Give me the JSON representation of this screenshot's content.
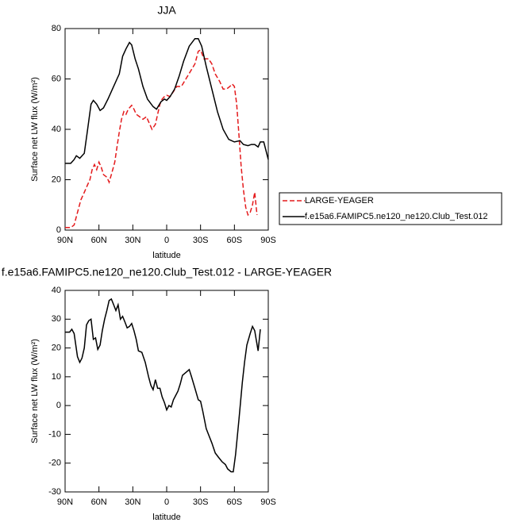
{
  "chart_data": [
    {
      "type": "line",
      "title": "JJA",
      "x_label": "latitude",
      "y_label": "Surface net LW flux (W/m²)",
      "xlim": [
        90,
        -90
      ],
      "ylim": [
        0,
        80
      ],
      "xticks": [
        {
          "value": 90,
          "label": "90N"
        },
        {
          "value": 60,
          "label": "60N"
        },
        {
          "value": 30,
          "label": "30N"
        },
        0,
        {
          "value": -30,
          "label": "30S"
        },
        {
          "value": -60,
          "label": "60S"
        },
        {
          "value": -90,
          "label": "90S"
        }
      ],
      "yticks": [
        0,
        20,
        40,
        60,
        80
      ],
      "legend": "right",
      "series": [
        {
          "name": "LARGE-YEAGER",
          "color": "#e41a1c",
          "line_style": "dashed",
          "x": [
            90,
            85,
            82,
            79,
            76,
            73,
            70,
            68,
            66,
            64,
            62,
            60,
            58,
            56,
            53,
            51,
            49,
            46,
            44,
            42,
            40,
            38,
            36,
            34,
            31,
            29,
            27,
            24,
            21,
            18,
            15,
            13,
            10,
            8,
            6,
            4,
            2,
            0,
            -3,
            -6,
            -9,
            -13,
            -17,
            -21,
            -25,
            -28,
            -30,
            -33,
            -37,
            -40,
            -43,
            -47,
            -50,
            -53,
            -56,
            -58,
            -60,
            -62,
            -64,
            -66,
            -68,
            -70,
            -72,
            -74,
            -76,
            -78,
            -80
          ],
          "values": [
            1,
            1,
            2,
            7,
            12,
            15,
            18,
            20,
            24,
            26,
            24,
            27,
            25,
            22,
            21,
            19,
            22,
            27,
            33,
            39,
            44,
            47,
            46,
            48,
            49.5,
            48,
            46,
            45,
            44,
            45,
            42,
            40,
            42,
            46,
            50,
            52,
            53,
            53.5,
            53,
            55,
            57,
            57,
            60,
            63,
            66,
            71,
            71.5,
            68,
            68,
            66,
            62,
            59,
            56,
            56,
            57,
            58,
            57,
            50,
            38,
            25,
            16,
            9,
            6,
            7,
            10,
            15,
            6
          ]
        },
        {
          "name": "f.e15a6.FAMIPC5.ne120_ne120.Club_Test.012",
          "color": "#000000",
          "line_style": "solid",
          "x": [
            90,
            85,
            82,
            80,
            77,
            73,
            70,
            67,
            65,
            62,
            59,
            56,
            52,
            48,
            44,
            42,
            39,
            36,
            33,
            31,
            28,
            25,
            21,
            17,
            12,
            9,
            5,
            2,
            0,
            -3,
            -7,
            -11,
            -15,
            -20,
            -25,
            -28,
            -31,
            -35,
            -40,
            -45,
            -50,
            -55,
            -60,
            -65,
            -68,
            -72,
            -75,
            -78,
            -81,
            -83,
            -86,
            -90
          ],
          "values": [
            26.5,
            26.5,
            28,
            29.5,
            28.5,
            30.5,
            40,
            50,
            51.5,
            50,
            47.5,
            48.5,
            52,
            56,
            60,
            62,
            69,
            72,
            74.5,
            73.5,
            68,
            64,
            57,
            52,
            49,
            48,
            51,
            52,
            51.5,
            53,
            56,
            61,
            67,
            73,
            76,
            76,
            73,
            65,
            56,
            47,
            40,
            36,
            35,
            35.5,
            34,
            33.5,
            34,
            34,
            33,
            35,
            35,
            28
          ]
        }
      ]
    },
    {
      "type": "line",
      "title": "f.e15a6.FAMIPC5.ne120_ne120.Club_Test.012 - LARGE-YEAGER",
      "x_label": "latitude",
      "y_label": "Surface net LW flux (W/m²)",
      "xlim": [
        90,
        -90
      ],
      "ylim": [
        -30,
        40
      ],
      "xticks": [
        {
          "value": 90,
          "label": "90N"
        },
        {
          "value": 60,
          "label": "60N"
        },
        {
          "value": 30,
          "label": "30N"
        },
        0,
        {
          "value": -30,
          "label": "30S"
        },
        {
          "value": -60,
          "label": "60S"
        },
        {
          "value": -90,
          "label": "90S"
        }
      ],
      "yticks": [
        -30,
        -20,
        -10,
        0,
        10,
        20,
        30,
        40
      ],
      "series": [
        {
          "color": "#000000",
          "line_style": "solid",
          "x": [
            90,
            86,
            84,
            82,
            79,
            77,
            75,
            73,
            71,
            69,
            67,
            65,
            63,
            61,
            59,
            57,
            55,
            53,
            51,
            49,
            47,
            45,
            43,
            41,
            39,
            37,
            35,
            33,
            31,
            29,
            27,
            25,
            22,
            19,
            16,
            14,
            12,
            10,
            8,
            6,
            4,
            2,
            0,
            -2,
            -4,
            -6,
            -8,
            -10,
            -12,
            -14,
            -17,
            -20,
            -22,
            -25,
            -28,
            -30,
            -32,
            -35,
            -37,
            -40,
            -43,
            -46,
            -49,
            -52,
            -54,
            -57,
            -59,
            -61,
            -64,
            -67,
            -69,
            -71,
            -74,
            -76,
            -78,
            -81,
            -83
          ],
          "values": [
            25.5,
            25.5,
            26.5,
            25,
            17,
            15,
            16.5,
            20,
            28,
            29.5,
            30,
            23,
            23.5,
            19.5,
            21,
            26,
            30,
            33,
            36.5,
            37,
            35,
            33,
            35,
            30,
            31,
            29,
            27,
            27.5,
            28.5,
            26,
            23,
            19,
            18.5,
            15,
            10,
            7,
            5.5,
            9,
            6,
            6,
            3,
            1,
            -1.5,
            0,
            -0.5,
            2,
            3.5,
            5,
            7.5,
            10.5,
            11.5,
            12.5,
            10,
            6,
            2,
            1.5,
            -2,
            -8,
            -10,
            -13,
            -16.5,
            -18,
            -19.5,
            -20.5,
            -22,
            -23,
            -23,
            -17,
            -5,
            8,
            15,
            21,
            25,
            27.5,
            26,
            19,
            26.5
          ]
        }
      ]
    }
  ]
}
